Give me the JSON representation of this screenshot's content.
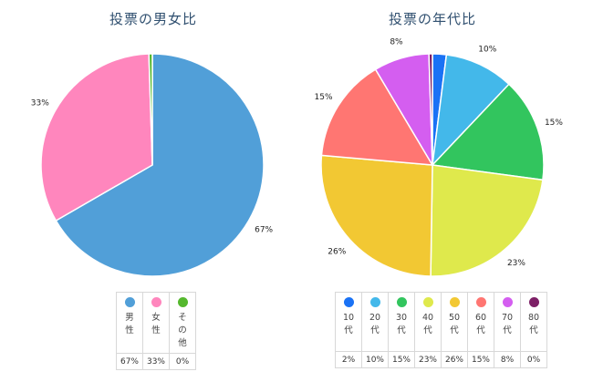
{
  "chart_data": [
    {
      "type": "pie",
      "title": "投票の男女比",
      "categories": [
        "男性",
        "女性",
        "その他"
      ],
      "values": [
        67,
        33,
        0.5
      ],
      "value_labels": [
        "67%",
        "33%",
        ""
      ],
      "colors": [
        "#519fd8",
        "#ff86bd",
        "#55b82e"
      ],
      "legend": {
        "placement": "bottom",
        "labels": [
          "男\n性",
          "女\n性",
          "そ\nの\n他"
        ],
        "percents": [
          "67%",
          "33%",
          "0%"
        ]
      }
    },
    {
      "type": "pie",
      "title": "投票の年代比",
      "categories": [
        "10代",
        "20代",
        "30代",
        "40代",
        "50代",
        "60代",
        "70代",
        "80代"
      ],
      "values": [
        2,
        10,
        15,
        23,
        26,
        15,
        8,
        0.5
      ],
      "value_labels": [
        "",
        "10%",
        "15%",
        "23%",
        "26%",
        "15%",
        "8%",
        ""
      ],
      "colors": [
        "#1a72f5",
        "#43b8ea",
        "#32c55e",
        "#dfe94c",
        "#f2c833",
        "#ff7672",
        "#d45ef0",
        "#7d1f66"
      ],
      "legend": {
        "placement": "bottom",
        "labels": [
          "10\n代",
          "20\n代",
          "30\n代",
          "40\n代",
          "50\n代",
          "60\n代",
          "70\n代",
          "80\n代"
        ],
        "percents": [
          "2%",
          "10%",
          "15%",
          "23%",
          "26%",
          "15%",
          "8%",
          "0%"
        ]
      }
    }
  ]
}
